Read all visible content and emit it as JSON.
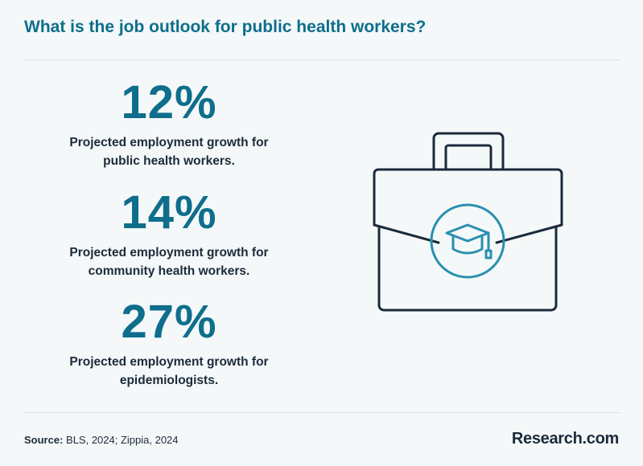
{
  "header": {
    "title": "What is the job outlook for public health workers?"
  },
  "stats": [
    {
      "value": "12%",
      "line1": "Projected employment growth for",
      "line2": "public health workers."
    },
    {
      "value": "14%",
      "line1": "Projected employment growth for",
      "line2": "community health workers."
    },
    {
      "value": "27%",
      "line1": "Projected employment growth for",
      "line2": "epidemiologists."
    }
  ],
  "icon": {
    "name": "briefcase-graduation-cap-icon"
  },
  "footer": {
    "source_label": "Source:",
    "source_text": "BLS, 2024; Zippia, 2024",
    "brand": "Research.com"
  },
  "colors": {
    "accent": "#0e6e8c",
    "icon_stroke": "#1b2a3a",
    "icon_accent": "#2a8fb0",
    "background": "#f4f8f9"
  }
}
